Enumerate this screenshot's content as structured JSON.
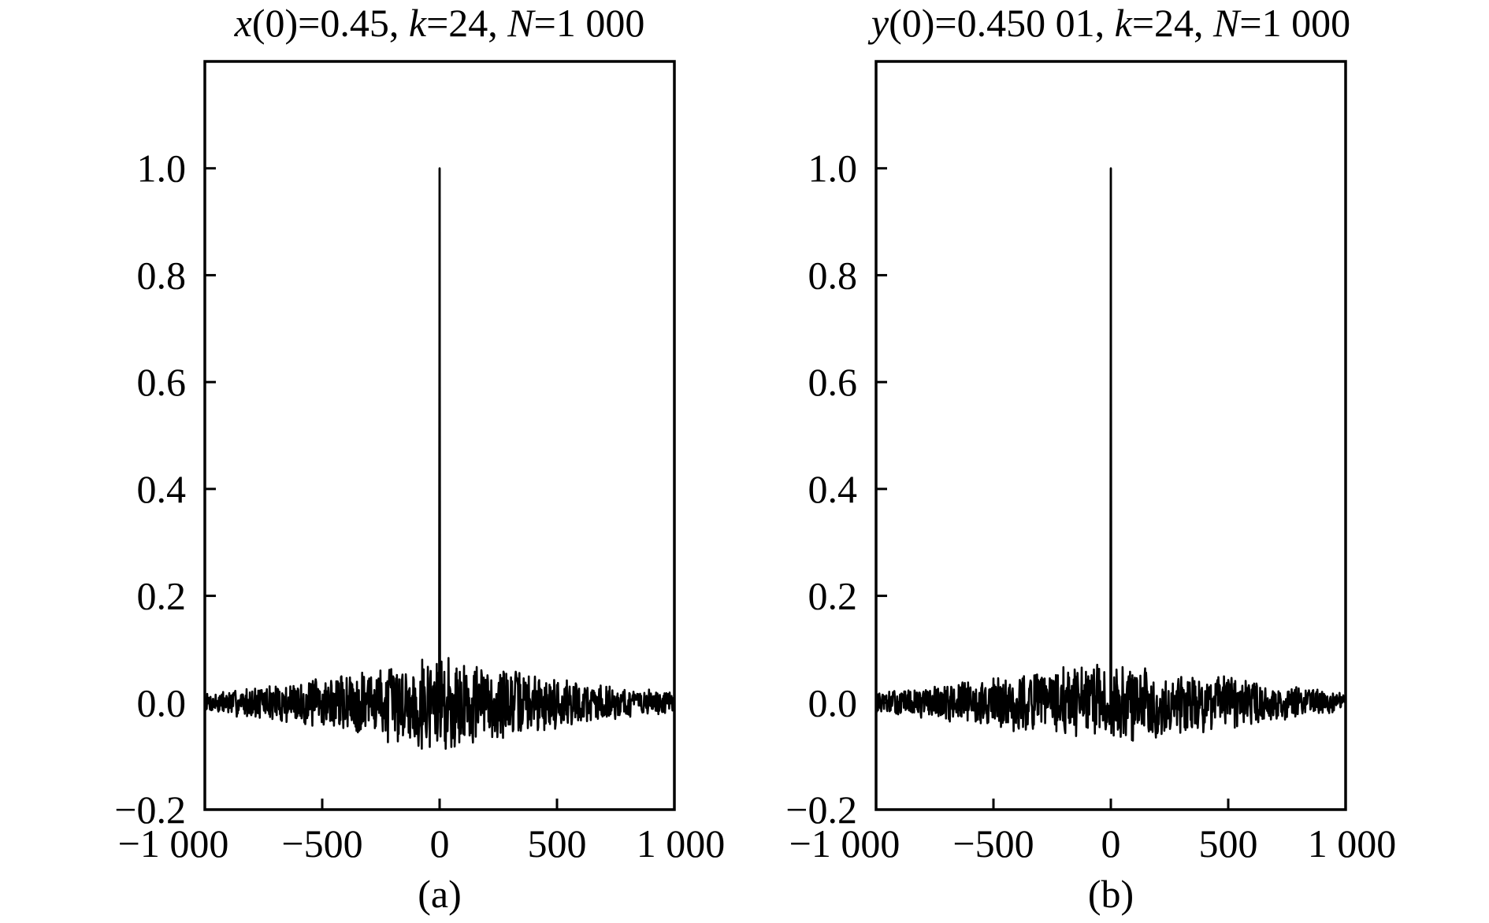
{
  "chart_data": [
    {
      "type": "line",
      "title_parts": [
        {
          "text": "x",
          "italic": true
        },
        {
          "text": "(0)=0.45, ",
          "italic": false
        },
        {
          "text": "k",
          "italic": true
        },
        {
          "text": "=24, ",
          "italic": false
        },
        {
          "text": "N",
          "italic": true
        },
        {
          "text": "=1 000",
          "italic": false
        }
      ],
      "caption": "(a)",
      "xlim": [
        -1000,
        1000
      ],
      "ylim": [
        -0.2,
        1.2
      ],
      "xticks": [
        -1000,
        -500,
        0,
        500,
        1000
      ],
      "xtick_labels": [
        "−1 000",
        "−500",
        "0",
        "500",
        "1 000"
      ],
      "yticks": [
        -0.2,
        0.0,
        0.2,
        0.4,
        0.6,
        0.8,
        1.0
      ],
      "ytick_labels": [
        "−0.2",
        "0.0",
        "0.2",
        "0.4",
        "0.6",
        "0.8",
        "1.0"
      ],
      "grid": false,
      "peak": {
        "x": 0,
        "y": 1.0
      },
      "envelope": [
        {
          "x": -1000,
          "y": 0.02
        },
        {
          "x": -800,
          "y": 0.03
        },
        {
          "x": -500,
          "y": 0.05
        },
        {
          "x": -250,
          "y": 0.07
        },
        {
          "x": -50,
          "y": 0.095
        },
        {
          "x": 50,
          "y": 0.095
        },
        {
          "x": 250,
          "y": 0.07
        },
        {
          "x": 500,
          "y": 0.05
        },
        {
          "x": 800,
          "y": 0.03
        },
        {
          "x": 1000,
          "y": 0.02
        }
      ],
      "seed": 7
    },
    {
      "type": "line",
      "title_parts": [
        {
          "text": "y",
          "italic": true
        },
        {
          "text": "(0)=0.450 01, ",
          "italic": false
        },
        {
          "text": "k",
          "italic": true
        },
        {
          "text": "=24, ",
          "italic": false
        },
        {
          "text": "N",
          "italic": true
        },
        {
          "text": "=1 000",
          "italic": false
        }
      ],
      "caption": "(b)",
      "xlim": [
        -1000,
        1000
      ],
      "ylim": [
        -0.2,
        1.2
      ],
      "xticks": [
        -1000,
        -500,
        0,
        500,
        1000
      ],
      "xtick_labels": [
        "−1 000",
        "−500",
        "0",
        "500",
        "1 000"
      ],
      "yticks": [
        -0.2,
        0.0,
        0.2,
        0.4,
        0.6,
        0.8,
        1.0
      ],
      "ytick_labels": [
        "−0.2",
        "0.0",
        "0.2",
        "0.4",
        "0.6",
        "0.8",
        "1.0"
      ],
      "grid": false,
      "peak": {
        "x": 0,
        "y": 1.0
      },
      "envelope": [
        {
          "x": -1000,
          "y": 0.02
        },
        {
          "x": -800,
          "y": 0.03
        },
        {
          "x": -500,
          "y": 0.05
        },
        {
          "x": -250,
          "y": 0.065
        },
        {
          "x": -50,
          "y": 0.075
        },
        {
          "x": 50,
          "y": 0.075
        },
        {
          "x": 250,
          "y": 0.065
        },
        {
          "x": 500,
          "y": 0.05
        },
        {
          "x": 800,
          "y": 0.03
        },
        {
          "x": 1000,
          "y": 0.02
        }
      ],
      "seed": 13
    }
  ]
}
